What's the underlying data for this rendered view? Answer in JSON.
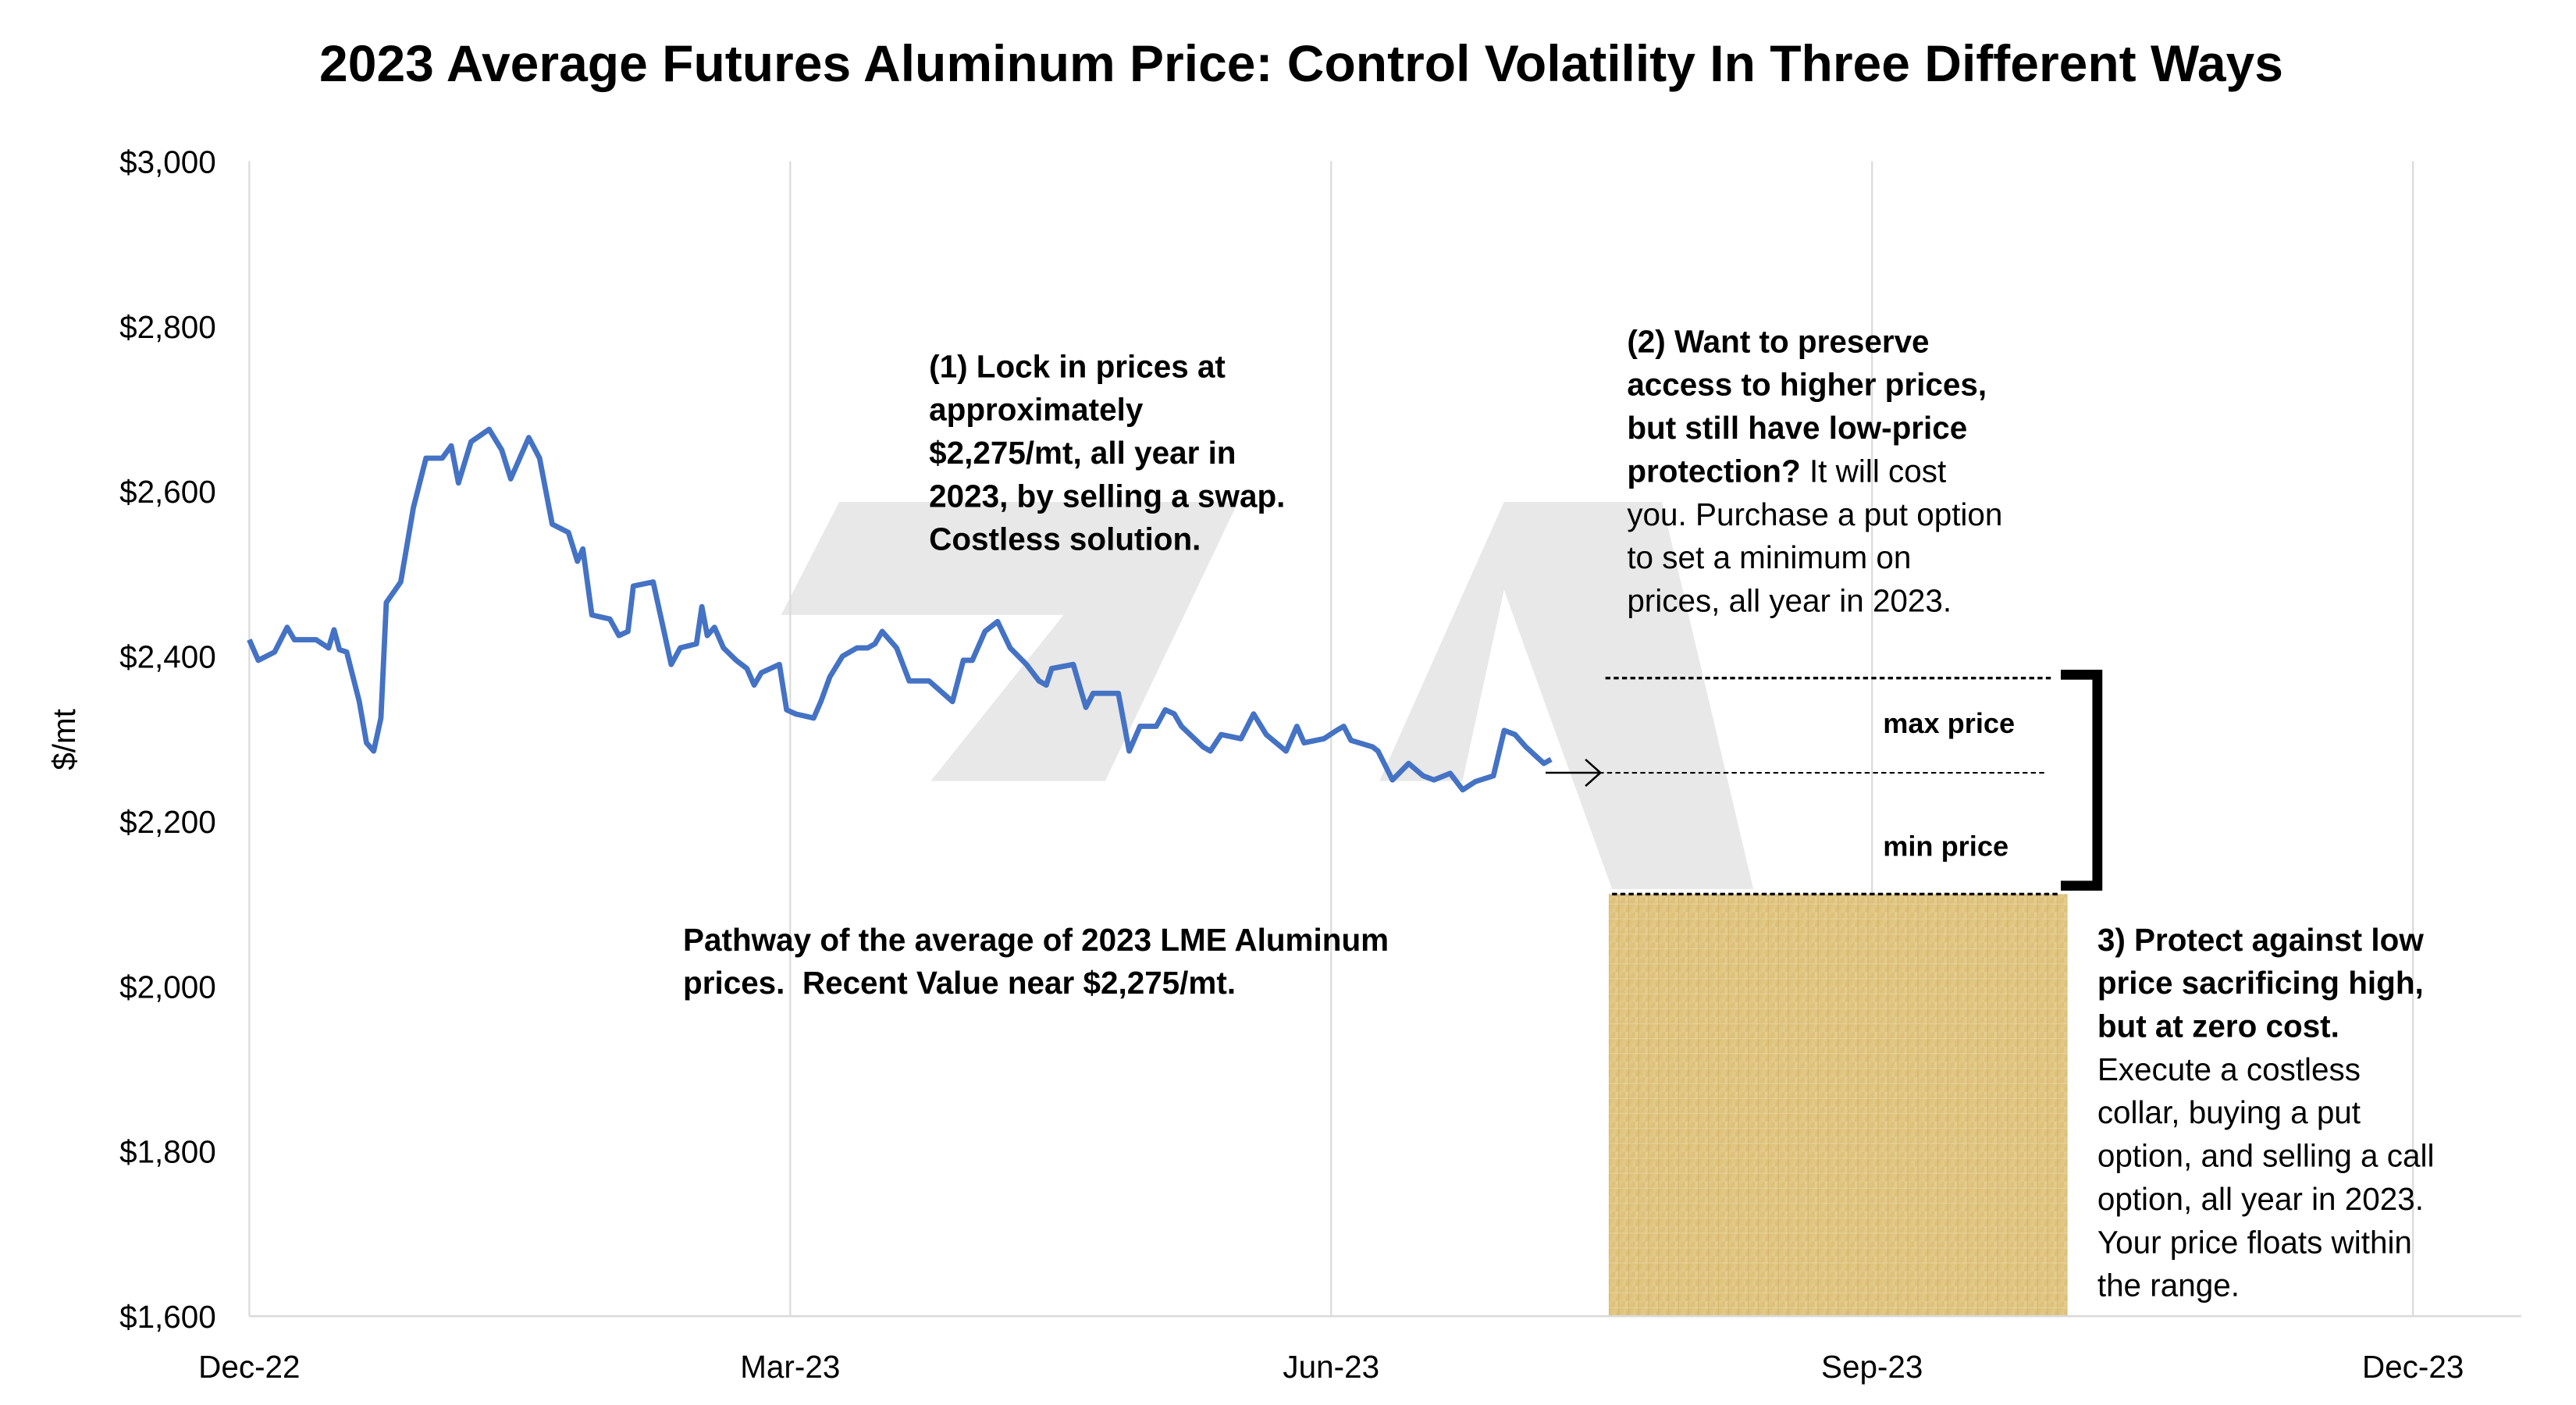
{
  "chart_data": {
    "type": "line",
    "title": "2023 Average Futures Aluminum Price: Control Volatility In Three Different Ways",
    "y_label": "$/mt",
    "xlim": [
      0,
      12.6
    ],
    "xticks": [
      {
        "value": 0,
        "label": "Dec-22"
      },
      {
        "value": 3,
        "label": "Mar-23"
      },
      {
        "value": 6,
        "label": "Jun-23"
      },
      {
        "value": 9,
        "label": "Sep-23"
      },
      {
        "value": 12,
        "label": "Dec-23"
      }
    ],
    "ylim": [
      1600,
      3000
    ],
    "yticks": [
      {
        "value": 1600,
        "label": "$1,600"
      },
      {
        "value": 1800,
        "label": "$1,800"
      },
      {
        "value": 2000,
        "label": "$2,000"
      },
      {
        "value": 2200,
        "label": "$2,200"
      },
      {
        "value": 2400,
        "label": "$2,400"
      },
      {
        "value": 2600,
        "label": "$2,600"
      },
      {
        "value": 2800,
        "label": "$2,800"
      },
      {
        "value": 3000,
        "label": "$3,000"
      }
    ],
    "grid": "x",
    "series": [
      {
        "color": "#4472c4",
        "x": [
          0,
          0.05,
          0.14,
          0.21,
          0.25,
          0.37,
          0.44,
          0.47,
          0.5,
          0.54,
          0.61,
          0.65,
          0.69,
          0.73,
          0.76,
          0.84,
          0.91,
          0.98,
          1.07,
          1.12,
          1.16,
          1.23,
          1.33,
          1.4,
          1.45,
          1.55,
          1.61,
          1.68,
          1.77,
          1.82,
          1.85,
          1.9,
          2.0,
          2.05,
          2.1,
          2.13,
          2.24,
          2.29,
          2.34,
          2.39,
          2.48,
          2.51,
          2.54,
          2.58,
          2.63,
          2.7,
          2.76,
          2.8,
          2.84,
          2.94,
          2.98,
          3.03,
          3.13,
          3.17,
          3.22,
          3.29,
          3.37,
          3.43,
          3.47,
          3.51,
          3.59,
          3.66,
          3.77,
          3.9,
          3.96,
          4.01,
          4.08,
          4.15,
          4.22,
          4.31,
          4.38,
          4.42,
          4.45,
          4.57,
          4.61,
          4.64,
          4.68,
          4.82,
          4.88,
          4.94,
          5.03,
          5.08,
          5.13,
          5.17,
          5.29,
          5.33,
          5.39,
          5.5,
          5.57,
          5.64,
          5.75,
          5.81,
          5.85,
          5.96,
          6.03,
          6.07,
          6.11,
          6.23,
          6.26,
          6.34,
          6.43,
          6.51,
          6.57,
          6.66,
          6.73,
          6.8,
          6.9,
          6.96,
          7.02,
          7.08,
          7.18,
          7.22
        ],
        "values": [
          2420,
          2395,
          2405,
          2435,
          2420,
          2420,
          2410,
          2432,
          2408,
          2405,
          2345,
          2295,
          2285,
          2325,
          2465,
          2490,
          2580,
          2640,
          2640,
          2655,
          2610,
          2660,
          2675,
          2650,
          2615,
          2665,
          2640,
          2560,
          2550,
          2515,
          2530,
          2450,
          2445,
          2425,
          2430,
          2485,
          2490,
          2440,
          2390,
          2410,
          2415,
          2460,
          2425,
          2435,
          2410,
          2395,
          2385,
          2365,
          2380,
          2390,
          2335,
          2330,
          2325,
          2345,
          2375,
          2400,
          2410,
          2410,
          2415,
          2430,
          2410,
          2370,
          2370,
          2345,
          2395,
          2395,
          2430,
          2442,
          2410,
          2390,
          2370,
          2365,
          2385,
          2390,
          2360,
          2338,
          2355,
          2355,
          2285,
          2315,
          2315,
          2335,
          2330,
          2315,
          2290,
          2285,
          2305,
          2300,
          2330,
          2305,
          2285,
          2315,
          2295,
          2300,
          2310,
          2315,
          2298,
          2290,
          2285,
          2250,
          2270,
          2255,
          2250,
          2258,
          2238,
          2248,
          2255,
          2310,
          2305,
          2290,
          2270,
          2275
        ]
      }
    ],
    "annotations": [
      {
        "lines": [
          [
            {
              "text": "(1) Lock in prices at",
              "bold": true
            }
          ],
          [
            {
              "text": "approximately",
              "bold": true
            }
          ],
          [
            {
              "text": "$2,275/mt, all year in",
              "bold": true
            }
          ],
          [
            {
              "text": "2023, by selling a swap.",
              "bold": true
            }
          ],
          [
            {
              "text": "Costless solution.",
              "bold": true
            }
          ]
        ]
      },
      {
        "lines": [
          [
            {
              "text": "(2) Want to preserve",
              "bold": true
            }
          ],
          [
            {
              "text": "access to higher prices,",
              "bold": true
            }
          ],
          [
            {
              "text": "but still have low-price",
              "bold": true
            }
          ],
          [
            {
              "text": "protection?",
              "bold": true
            },
            {
              "text": " It will cost",
              "bold": false
            }
          ],
          [
            {
              "text": "you. Purchase a put option",
              "bold": false
            }
          ],
          [
            {
              "text": "to set a minimum on",
              "bold": false
            }
          ],
          [
            {
              "text": "prices, all year in 2023.",
              "bold": false
            }
          ]
        ]
      },
      {
        "lines": [
          [
            {
              "text": "Pathway of the average of 2023 LME Aluminum",
              "bold": true
            }
          ],
          [
            {
              "text": "prices.  Recent Value near $2,275/mt.",
              "bold": true
            }
          ]
        ]
      },
      {
        "lines": [
          [
            {
              "text": "3) Protect against low",
              "bold": true
            }
          ],
          [
            {
              "text": "price sacrificing high,",
              "bold": true
            }
          ],
          [
            {
              "text": "but at zero cost.",
              "bold": true
            }
          ],
          [
            {
              "text": "Execute a costless",
              "bold": false
            }
          ],
          [
            {
              "text": "collar, buying a put",
              "bold": false
            }
          ],
          [
            {
              "text": "option, and selling a call",
              "bold": false
            }
          ],
          [
            {
              "text": "option, all year in 2023.",
              "bold": false
            }
          ],
          [
            {
              "text": "Your price floats within",
              "bold": false
            }
          ],
          [
            {
              "text": "the range.",
              "bold": false
            }
          ]
        ]
      }
    ],
    "range_labels": [
      "max price",
      "min price"
    ]
  }
}
